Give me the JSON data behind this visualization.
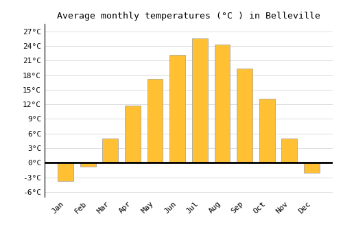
{
  "months": [
    "Jan",
    "Feb",
    "Mar",
    "Apr",
    "May",
    "Jun",
    "Jul",
    "Aug",
    "Sep",
    "Oct",
    "Nov",
    "Dec"
  ],
  "temperatures": [
    -3.7,
    -0.8,
    5.0,
    11.8,
    17.2,
    22.2,
    25.6,
    24.3,
    19.3,
    13.2,
    5.0,
    -2.0
  ],
  "bar_color": "#FFC034",
  "bar_edge_color": "#999999",
  "title": "Average monthly temperatures (°C ) in Belleville",
  "ylim": [
    -7,
    28.5
  ],
  "yticks": [
    -6,
    -3,
    0,
    3,
    6,
    9,
    12,
    15,
    18,
    21,
    24,
    27
  ],
  "ytick_labels": [
    "-6°C",
    "-3°C",
    "0°C",
    "3°C",
    "6°C",
    "9°C",
    "12°C",
    "15°C",
    "18°C",
    "21°C",
    "24°C",
    "27°C"
  ],
  "background_color": "#ffffff",
  "grid_color": "#dddddd",
  "zero_line_color": "#000000",
  "title_fontsize": 9.5,
  "tick_fontsize": 8,
  "left_spine_color": "#333333"
}
